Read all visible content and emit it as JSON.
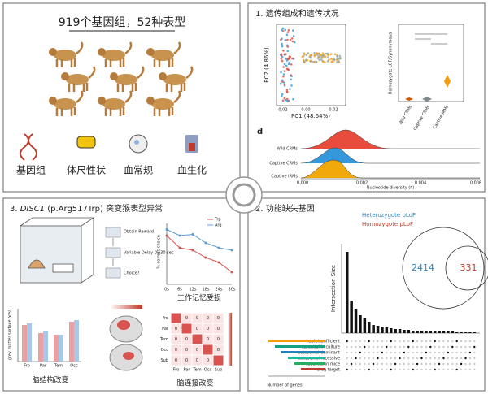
{
  "panel_intro": {
    "title": "919个基因组，52种表型",
    "icons": [
      "基因组",
      "体尺性状",
      "血常规",
      "血生化"
    ]
  },
  "panel_1": {
    "title": "1. 遗传组成和遗传状况",
    "pca_xlabel": "PC1 (48.64%)",
    "pca_ylabel": "PC2 (4.86%)",
    "pca_xticks": [
      "-0.02",
      "0.00",
      "0.02"
    ],
    "violin_ylabel": "Homozygote LOF/Synonymous",
    "groups": [
      "Wild CRMs",
      "Captive CRMs",
      "Captive IRMs"
    ],
    "ridge_tag": "d",
    "ridge_xlabel": "Nucleotide diversity (π)",
    "ridge_xticks": [
      "0.000",
      "0.002",
      "0.004",
      "0.006"
    ]
  },
  "panel_3": {
    "title_gene": "DISC1",
    "title_rest": " (p.Arg517Trp) 突变猴表型异常",
    "flow": [
      "Obtain Reward",
      "Variable Delay 0~30 sec",
      "Choice?"
    ],
    "memory_caption": "工作记忆受损",
    "structure_caption": "脑结构改变",
    "connect_caption": "脑连接改变",
    "memory_ylabel": "% correct choice",
    "bar_ylabel": "grey matter surface area",
    "bar_categories": [
      "Fro",
      "Par",
      "Tem",
      "Occ"
    ],
    "heat_rows": [
      "Fro",
      "Par",
      "Tem",
      "Occ",
      "Sub"
    ],
    "heat_cols": [
      "Fro",
      "Par",
      "Tem",
      "Occ",
      "Sub"
    ],
    "heat_cells": [
      [
        null,
        0,
        0,
        0,
        0
      ],
      [
        0,
        null,
        0,
        0,
        0
      ],
      [
        0,
        0,
        null,
        0,
        0
      ],
      [
        0,
        0,
        0,
        null,
        0
      ],
      [
        0,
        0,
        0,
        0,
        null
      ]
    ],
    "chart_data": {
      "type": "line",
      "categories": [
        "0s",
        "6s",
        "12s",
        "18s",
        "24s",
        "30s"
      ],
      "ylim": [
        50,
        100
      ],
      "series": [
        {
          "name": "Trp",
          "color": "#d9534f",
          "values": [
            90,
            80,
            78,
            72,
            68,
            60
          ]
        },
        {
          "name": "Arg",
          "color": "#5b9bd5",
          "values": [
            95,
            90,
            91,
            84,
            80,
            78
          ]
        }
      ]
    }
  },
  "panel_2": {
    "title": "2. 功能缺失基因",
    "legend": [
      "Heterozygote pLoF",
      "Homozygote pLoF"
    ],
    "venn_left": "2414",
    "venn_right": "331",
    "ylabel": "Intersection Size",
    "xlabel": "Number of genes",
    "sets": [
      "haploinsufficient",
      "essential in culture",
      "autosomal dominant",
      "autosomal recessive",
      "essential in mice",
      "drug target"
    ]
  }
}
